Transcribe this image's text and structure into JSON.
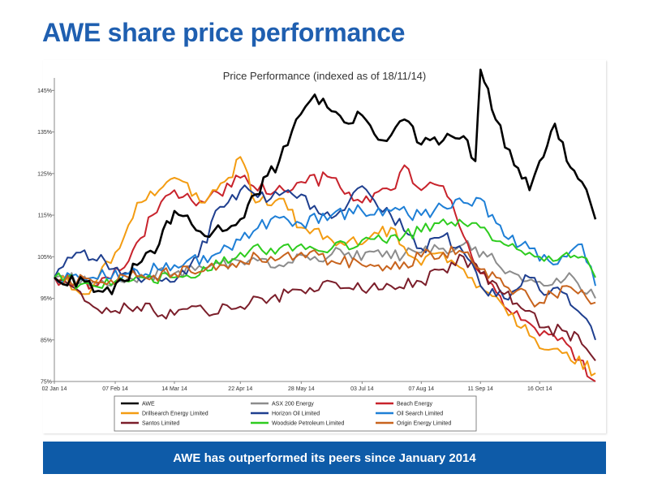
{
  "slide": {
    "title": "AWE share price performance",
    "banner": "AWE has outperformed its peers since January 2014"
  },
  "chart_data": {
    "type": "line",
    "title": "Price Performance (indexed as of 18/11/14)",
    "xlabel": "",
    "ylabel": "",
    "x_tick_labels": [
      "02 Jan 14",
      "07 Feb 14",
      "14 Mar 14",
      "22 Apr 14",
      "28 May 14",
      "03 Jul 14",
      "07 Aug 14",
      "11 Sep 14",
      "16 Oct 14"
    ],
    "y_tick_labels": [
      "75%",
      "85%",
      "95%",
      "105%",
      "115%",
      "125%",
      "135%",
      "145%"
    ],
    "ylim": [
      75,
      148
    ],
    "x_range": [
      "2014-01-02",
      "2014-11-18"
    ],
    "grid": false,
    "legend_position": "bottom",
    "series": [
      {
        "name": "AWE",
        "color": "#000000",
        "x": [
          "2014-01-02",
          "2014-01-20",
          "2014-02-05",
          "2014-02-20",
          "2014-03-05",
          "2014-03-14",
          "2014-04-01",
          "2014-04-22",
          "2014-05-01",
          "2014-05-15",
          "2014-05-25",
          "2014-06-05",
          "2014-06-15",
          "2014-06-25",
          "2014-07-03",
          "2014-07-15",
          "2014-07-28",
          "2014-08-07",
          "2014-08-20",
          "2014-09-01",
          "2014-09-08",
          "2014-09-11",
          "2014-09-20",
          "2014-10-01",
          "2014-10-10",
          "2014-10-16",
          "2014-10-25",
          "2014-11-01",
          "2014-11-10",
          "2014-11-18"
        ],
        "values": [
          100,
          99,
          96,
          103,
          108,
          116,
          110,
          114,
          120,
          128,
          138,
          144,
          140,
          137,
          139,
          133,
          138,
          132,
          133,
          134,
          128,
          150,
          138,
          127,
          121,
          128,
          137,
          128,
          123,
          114
        ]
      },
      {
        "name": "ASX 200 Energy",
        "color": "#8c8c8c",
        "x": [
          "2014-01-02",
          "2014-01-25",
          "2014-02-15",
          "2014-03-14",
          "2014-04-05",
          "2014-04-22",
          "2014-05-15",
          "2014-06-05",
          "2014-06-25",
          "2014-07-15",
          "2014-08-07",
          "2014-08-20",
          "2014-09-01",
          "2014-09-15",
          "2014-10-01",
          "2014-10-16",
          "2014-11-05",
          "2014-11-18"
        ],
        "values": [
          100,
          99,
          100,
          101,
          103,
          104,
          103,
          105,
          106,
          105,
          106,
          107,
          108,
          105,
          101,
          99,
          100,
          95
        ]
      },
      {
        "name": "Beach Energy",
        "color": "#c8232c",
        "x": [
          "2014-01-02",
          "2014-01-25",
          "2014-02-15",
          "2014-03-01",
          "2014-03-14",
          "2014-04-01",
          "2014-04-22",
          "2014-05-10",
          "2014-05-28",
          "2014-06-15",
          "2014-07-03",
          "2014-07-20",
          "2014-07-28",
          "2014-08-07",
          "2014-08-20",
          "2014-09-01",
          "2014-09-11",
          "2014-09-25",
          "2014-10-10",
          "2014-10-16",
          "2014-11-01",
          "2014-11-18"
        ],
        "values": [
          100,
          98,
          104,
          115,
          121,
          118,
          124,
          120,
          123,
          124,
          118,
          121,
          127,
          121,
          122,
          110,
          101,
          93,
          89,
          86,
          84,
          75
        ]
      },
      {
        "name": "Drillsearch Energy Limited",
        "color": "#f39c12",
        "x": [
          "2014-01-02",
          "2014-01-20",
          "2014-02-07",
          "2014-02-20",
          "2014-03-05",
          "2014-03-14",
          "2014-04-01",
          "2014-04-15",
          "2014-04-22",
          "2014-05-01",
          "2014-05-15",
          "2014-05-28",
          "2014-06-15",
          "2014-07-03",
          "2014-07-20",
          "2014-08-07",
          "2014-08-20",
          "2014-09-01",
          "2014-09-11",
          "2014-09-25",
          "2014-10-10",
          "2014-10-16",
          "2014-11-01",
          "2014-11-18"
        ],
        "values": [
          100,
          96,
          106,
          118,
          121,
          124,
          118,
          124,
          129,
          118,
          119,
          112,
          109,
          108,
          112,
          103,
          106,
          102,
          98,
          93,
          86,
          83,
          82,
          77
        ]
      },
      {
        "name": "Horizon Oil Limited",
        "color": "#1f3f8f",
        "x": [
          "2014-01-02",
          "2014-01-15",
          "2014-02-01",
          "2014-02-20",
          "2014-03-14",
          "2014-03-28",
          "2014-04-10",
          "2014-04-22",
          "2014-05-10",
          "2014-05-28",
          "2014-06-10",
          "2014-06-20",
          "2014-07-03",
          "2014-07-20",
          "2014-08-07",
          "2014-08-20",
          "2014-09-01",
          "2014-09-11",
          "2014-09-25",
          "2014-10-10",
          "2014-10-16",
          "2014-11-01",
          "2014-11-10",
          "2014-11-18"
        ],
        "values": [
          100,
          106,
          104,
          100,
          99,
          105,
          117,
          121,
          119,
          120,
          115,
          116,
          122,
          115,
          107,
          110,
          106,
          98,
          95,
          100,
          97,
          96,
          91,
          85
        ]
      },
      {
        "name": "Oil Search Limited",
        "color": "#1e7fd6",
        "x": [
          "2014-01-02",
          "2014-01-25",
          "2014-02-15",
          "2014-03-14",
          "2014-04-10",
          "2014-04-22",
          "2014-05-10",
          "2014-05-28",
          "2014-06-15",
          "2014-07-03",
          "2014-07-20",
          "2014-08-07",
          "2014-08-20",
          "2014-09-01",
          "2014-09-11",
          "2014-09-25",
          "2014-10-10",
          "2014-10-16",
          "2014-11-01",
          "2014-11-10",
          "2014-11-18"
        ],
        "values": [
          100,
          100,
          101,
          103,
          106,
          109,
          114,
          113,
          115,
          116,
          116,
          115,
          117,
          118,
          119,
          110,
          107,
          104,
          105,
          108,
          98
        ]
      },
      {
        "name": "Santos Limited",
        "color": "#7b1e2a",
        "x": [
          "2014-01-02",
          "2014-01-25",
          "2014-02-07",
          "2014-02-20",
          "2014-03-14",
          "2014-04-01",
          "2014-04-22",
          "2014-05-10",
          "2014-05-28",
          "2014-06-15",
          "2014-07-03",
          "2014-07-20",
          "2014-08-07",
          "2014-08-20",
          "2014-09-01",
          "2014-09-11",
          "2014-09-25",
          "2014-10-10",
          "2014-10-16",
          "2014-11-01",
          "2014-11-10",
          "2014-11-18"
        ],
        "values": [
          100,
          93,
          92,
          93,
          91,
          92,
          93,
          95,
          97,
          99,
          97,
          98,
          99,
          102,
          105,
          101,
          96,
          92,
          88,
          87,
          84,
          80
        ]
      },
      {
        "name": "Woodside Petroleum Limited",
        "color": "#2ecc1f",
        "x": [
          "2014-01-02",
          "2014-01-25",
          "2014-02-15",
          "2014-03-14",
          "2014-04-10",
          "2014-04-22",
          "2014-05-10",
          "2014-05-28",
          "2014-06-15",
          "2014-07-03",
          "2014-07-20",
          "2014-08-07",
          "2014-08-20",
          "2014-09-01",
          "2014-09-11",
          "2014-09-25",
          "2014-10-10",
          "2014-10-16",
          "2014-11-01",
          "2014-11-10",
          "2014-11-18"
        ],
        "values": [
          100,
          98,
          99,
          100,
          103,
          106,
          107,
          108,
          107,
          109,
          110,
          111,
          114,
          113,
          112,
          108,
          106,
          105,
          106,
          105,
          100
        ]
      },
      {
        "name": "Origin Energy Limited",
        "color": "#c8641e",
        "x": [
          "2014-01-02",
          "2014-01-25",
          "2014-02-15",
          "2014-03-14",
          "2014-04-10",
          "2014-04-22",
          "2014-05-10",
          "2014-05-28",
          "2014-06-15",
          "2014-07-03",
          "2014-07-20",
          "2014-08-07",
          "2014-08-20",
          "2014-09-01",
          "2014-09-11",
          "2014-09-25",
          "2014-10-10",
          "2014-10-16",
          "2014-11-01",
          "2014-11-10",
          "2014-11-18"
        ],
        "values": [
          100,
          99,
          100,
          101,
          103,
          104,
          105,
          106,
          104,
          103,
          102,
          105,
          106,
          106,
          102,
          98,
          95,
          94,
          98,
          97,
          94
        ]
      }
    ]
  }
}
